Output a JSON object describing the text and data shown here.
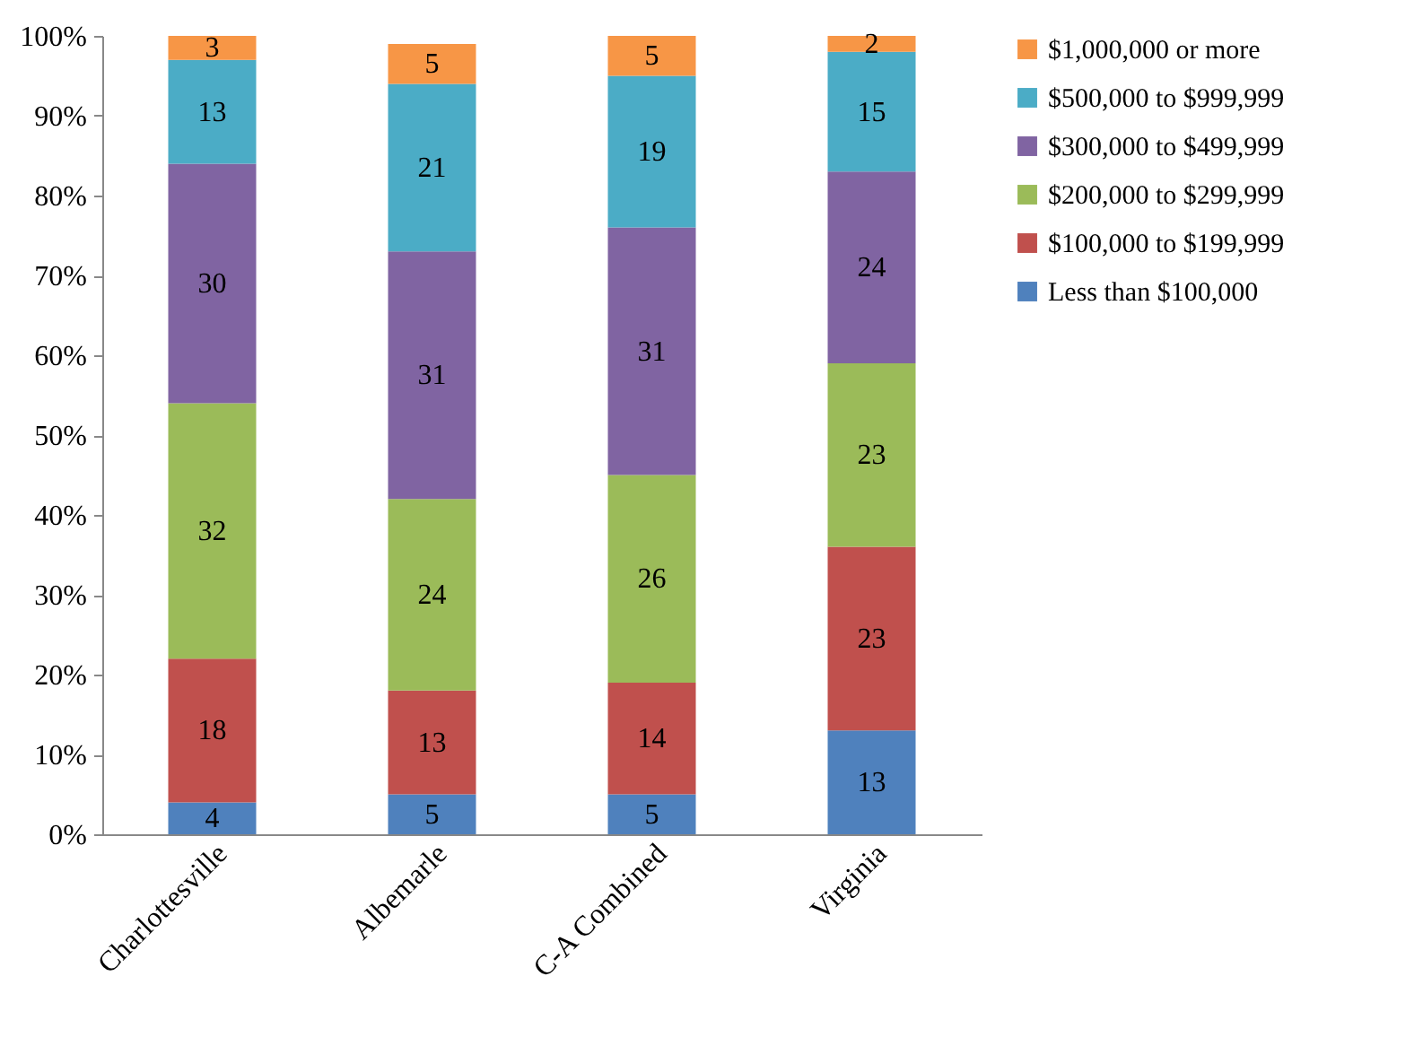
{
  "chart_data": {
    "type": "bar",
    "stacked": true,
    "categories": [
      "Charlottesville",
      "Albemarle",
      "C-A Combined",
      "Virginia"
    ],
    "series": [
      {
        "name": "Less than $100,000",
        "color": "#4f81bd",
        "values": [
          4,
          5,
          5,
          13
        ]
      },
      {
        "name": "$100,000 to $199,999",
        "color": "#c0504d",
        "values": [
          18,
          13,
          14,
          23
        ]
      },
      {
        "name": "$200,000 to $299,999",
        "color": "#9bbb59",
        "values": [
          32,
          24,
          26,
          23
        ]
      },
      {
        "name": "$300,000 to $499,999",
        "color": "#8064a2",
        "values": [
          30,
          31,
          31,
          24
        ]
      },
      {
        "name": "$500,000 to $999,999",
        "color": "#4bacc6",
        "values": [
          13,
          21,
          19,
          15
        ]
      },
      {
        "name": "$1,000,000 or more",
        "color": "#f79646",
        "values": [
          3,
          5,
          5,
          2
        ]
      }
    ],
    "ylim": [
      0,
      100
    ],
    "yticks": [
      {
        "value": 0,
        "label": "0%"
      },
      {
        "value": 10,
        "label": "10%"
      },
      {
        "value": 20,
        "label": "20%"
      },
      {
        "value": 30,
        "label": "30%"
      },
      {
        "value": 40,
        "label": "40%"
      },
      {
        "value": 50,
        "label": "50%"
      },
      {
        "value": 60,
        "label": "60%"
      },
      {
        "value": 70,
        "label": "70%"
      },
      {
        "value": 80,
        "label": "80%"
      },
      {
        "value": 90,
        "label": "90%"
      },
      {
        "value": 100,
        "label": "100%"
      }
    ],
    "data_labels": true,
    "legend": "right",
    "grid": false
  }
}
